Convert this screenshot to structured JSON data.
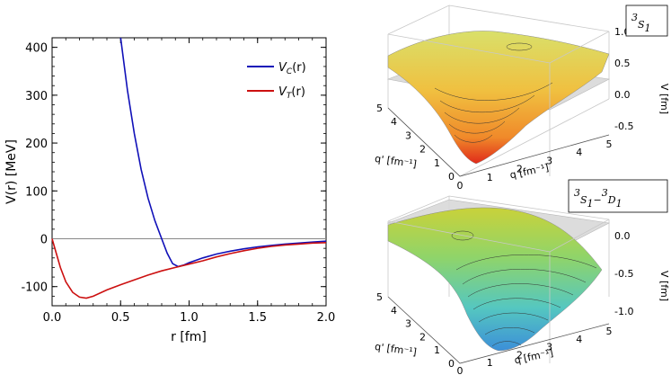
{
  "chart_data": [
    {
      "type": "line",
      "xlabel": "r [fm]",
      "ylabel": "V(r) [MeV]",
      "xlim": [
        0.0,
        2.0
      ],
      "ylim": [
        -140,
        420
      ],
      "xticks": [
        "0.0",
        "0.5",
        "1.0",
        "1.5",
        "2.0"
      ],
      "yticks": [
        "-100",
        "0",
        "100",
        "200",
        "300",
        "400"
      ],
      "legend_position": "top-right",
      "series": [
        {
          "name": "V_C(r)",
          "legend_main": "V",
          "legend_sub": "C",
          "legend_tail": "(r)",
          "color": "#1010b8",
          "points": [
            [
              0.5,
              420
            ],
            [
              0.55,
              310
            ],
            [
              0.6,
              220
            ],
            [
              0.65,
              145
            ],
            [
              0.7,
              85
            ],
            [
              0.75,
              38
            ],
            [
              0.8,
              0
            ],
            [
              0.84,
              -30
            ],
            [
              0.88,
              -52
            ],
            [
              0.92,
              -58
            ],
            [
              0.96,
              -55
            ],
            [
              1.0,
              -50
            ],
            [
              1.1,
              -40
            ],
            [
              1.2,
              -32
            ],
            [
              1.3,
              -26
            ],
            [
              1.4,
              -21
            ],
            [
              1.5,
              -17
            ],
            [
              1.6,
              -14
            ],
            [
              1.7,
              -11
            ],
            [
              1.8,
              -9
            ],
            [
              1.9,
              -7
            ],
            [
              2.0,
              -5
            ]
          ]
        },
        {
          "name": "V_T(r)",
          "legend_main": "V",
          "legend_sub": "T",
          "legend_tail": "(r)",
          "color": "#cc1010",
          "points": [
            [
              0.0,
              0
            ],
            [
              0.03,
              -30
            ],
            [
              0.06,
              -60
            ],
            [
              0.1,
              -90
            ],
            [
              0.15,
              -112
            ],
            [
              0.2,
              -122
            ],
            [
              0.25,
              -124
            ],
            [
              0.3,
              -120
            ],
            [
              0.4,
              -107
            ],
            [
              0.5,
              -96
            ],
            [
              0.6,
              -86
            ],
            [
              0.7,
              -76
            ],
            [
              0.8,
              -67
            ],
            [
              0.9,
              -60
            ],
            [
              1.0,
              -53
            ],
            [
              1.1,
              -46
            ],
            [
              1.2,
              -38
            ],
            [
              1.3,
              -31
            ],
            [
              1.4,
              -25
            ],
            [
              1.5,
              -20
            ],
            [
              1.6,
              -16
            ],
            [
              1.7,
              -13
            ],
            [
              1.8,
              -11
            ],
            [
              1.9,
              -9
            ],
            [
              2.0,
              -8
            ]
          ]
        }
      ]
    },
    {
      "type": "surface",
      "title_parts": [
        "3",
        "S",
        "1"
      ],
      "xlabel": "q [fm⁻¹]",
      "ylabel": "q' [fm⁻¹]",
      "zlabel": "V [fm]",
      "q_ticks": [
        "0",
        "1",
        "2",
        "3",
        "4",
        "5"
      ],
      "qp_ticks": [
        "0",
        "1",
        "2",
        "3",
        "4",
        "5"
      ],
      "zlim": [
        -0.6,
        1.0
      ],
      "z_ticks": [
        "1.0",
        "0.5",
        "0.0",
        "-0.5"
      ],
      "colors": [
        "#d9e06a",
        "#f0c040",
        "#f08a2a",
        "#e02a1a"
      ]
    },
    {
      "type": "surface",
      "title_parts": [
        "3",
        "S",
        "1",
        "3",
        "D",
        "1"
      ],
      "xlabel": "q [fm⁻¹]",
      "ylabel": "q' [fm⁻¹]",
      "zlabel": "V [fm]",
      "q_ticks": [
        "0",
        "1",
        "2",
        "3",
        "4",
        "5"
      ],
      "qp_ticks": [
        "0",
        "1",
        "2",
        "3",
        "4",
        "5"
      ],
      "zlim": [
        -1.2,
        0.2
      ],
      "z_ticks": [
        "0.0",
        "-0.5",
        "-1.0"
      ],
      "colors": [
        "#c9d23a",
        "#8fd46a",
        "#55c7c0",
        "#3c8fd8"
      ]
    }
  ]
}
